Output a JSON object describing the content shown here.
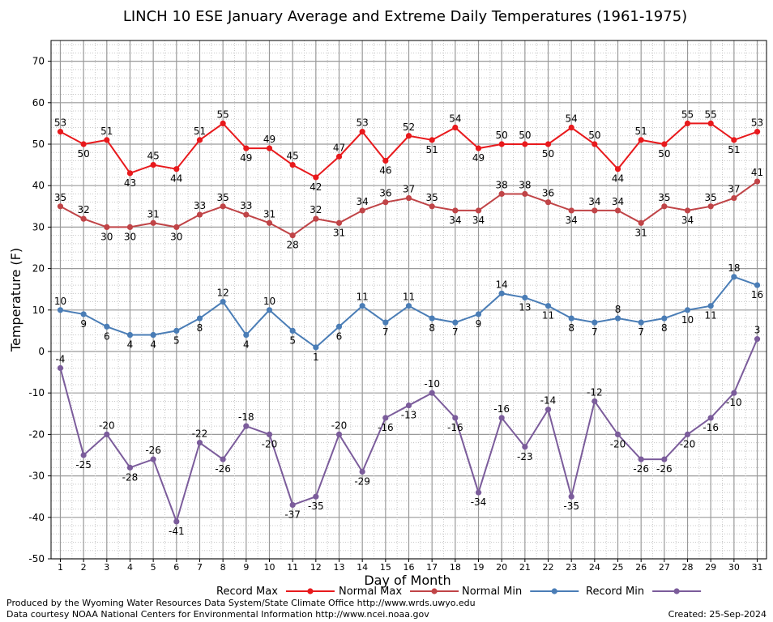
{
  "chart_data": {
    "type": "line",
    "title": "LINCH 10 ESE January Average and Extreme Daily Temperatures (1961-1975)",
    "xlabel": "Day of Month",
    "ylabel": "Temperature (F)",
    "ylim": [
      -50,
      75
    ],
    "xlim": [
      0.6,
      31.4
    ],
    "yticks": [
      -50,
      -40,
      -30,
      -20,
      -10,
      0,
      10,
      20,
      30,
      40,
      50,
      60,
      70
    ],
    "grid": true,
    "legend": "bottom",
    "x": [
      1,
      2,
      3,
      4,
      5,
      6,
      7,
      8,
      9,
      10,
      11,
      12,
      13,
      14,
      15,
      16,
      17,
      18,
      19,
      20,
      21,
      22,
      23,
      24,
      25,
      26,
      27,
      28,
      29,
      30,
      31
    ],
    "x_labels": [
      "1",
      "2",
      "3",
      "4",
      "5",
      "6",
      "7",
      "8",
      "9",
      "10",
      "11",
      "12",
      "13",
      "14",
      "15",
      "16",
      "17",
      "18",
      "19",
      "20",
      "21",
      "22",
      "23",
      "24",
      "25",
      "26",
      "27",
      "28",
      "29",
      "30",
      "31"
    ],
    "series": [
      {
        "name": "Record Max",
        "color": "#e8191c",
        "values": [
          53,
          50,
          51,
          43,
          45,
          44,
          51,
          55,
          49,
          49,
          45,
          42,
          47,
          53,
          46,
          52,
          51,
          54,
          49,
          50,
          50,
          50,
          54,
          50,
          44,
          51,
          50,
          55,
          55,
          51,
          53
        ],
        "labels": [
          "53",
          "50",
          "51",
          "43",
          "45",
          "44",
          "51",
          "55",
          "49",
          "49",
          "45",
          "42",
          "47",
          "53",
          "46",
          "52",
          "51",
          "54",
          "49",
          "50",
          "50",
          "50",
          "54",
          "50",
          "44",
          "51",
          "50",
          "55",
          "55",
          "51",
          "53"
        ]
      },
      {
        "name": "Normal Max",
        "color": "#c04447",
        "values": [
          35,
          32,
          30,
          30,
          31,
          30,
          33,
          35,
          33,
          31,
          28,
          32,
          31,
          34,
          36,
          37,
          35,
          34,
          34,
          38,
          38,
          36,
          34,
          34,
          34,
          31,
          35,
          34,
          35,
          37,
          41
        ],
        "labels": [
          "35",
          "32",
          "30",
          "30",
          "31",
          "30",
          "33",
          "35",
          "33",
          "31",
          "28",
          "32",
          "31",
          "34",
          "36",
          "37",
          "35",
          "34",
          "34",
          "38",
          "38",
          "36",
          "34",
          "34",
          "34",
          "31",
          "35",
          "34",
          "35",
          "37",
          "41"
        ]
      },
      {
        "name": "Normal Min",
        "color": "#4a7db6",
        "values": [
          10,
          9,
          6,
          4,
          4,
          5,
          8,
          12,
          4,
          10,
          5,
          1,
          6,
          11,
          7,
          11,
          8,
          7,
          9,
          14,
          13,
          11,
          8,
          7,
          8,
          7,
          8,
          10,
          11,
          18,
          16
        ],
        "labels": [
          "10",
          "9",
          "6",
          "4",
          "4",
          "5",
          "8",
          "12",
          "4",
          "10",
          "5",
          "1",
          "6",
          "11",
          "7",
          "11",
          "8",
          "7",
          "9",
          "14",
          "13",
          "11",
          "8",
          "7",
          "8",
          "7",
          "8",
          "10",
          "11",
          "18",
          "16"
        ]
      },
      {
        "name": "Record Min",
        "color": "#7b5c9b",
        "values": [
          -4,
          -25,
          -20,
          -28,
          -26,
          -41,
          -22,
          -26,
          -18,
          -20,
          -37,
          -35,
          -20,
          -29,
          -16,
          -13,
          -10,
          -16,
          -34,
          -16,
          -23,
          -14,
          -35,
          -12,
          -20,
          -26,
          -26,
          -20,
          -16,
          -10,
          3
        ],
        "labels": [
          "-4",
          "-25",
          "-20",
          "-28",
          "-26",
          "-41",
          "-22",
          "-26",
          "-18",
          "-20",
          "-37",
          "-35",
          "-20",
          "-29",
          "-16",
          "-13",
          "-10",
          "-16",
          "-34",
          "-16",
          "-23",
          "-14",
          "-35",
          "-12",
          "-20",
          "-26",
          "-26",
          "-20",
          "-16",
          "-10",
          "3"
        ]
      }
    ]
  },
  "footer": {
    "credit_line_1": "Produced by the Wyoming Water Resources Data System/State Climate Office http://www.wrds.uwyo.edu",
    "credit_line_2": "Data courtesy NOAA National Centers for Environmental Information http://www.ncei.noaa.gov",
    "created": "Created:  25-Sep-2024"
  }
}
